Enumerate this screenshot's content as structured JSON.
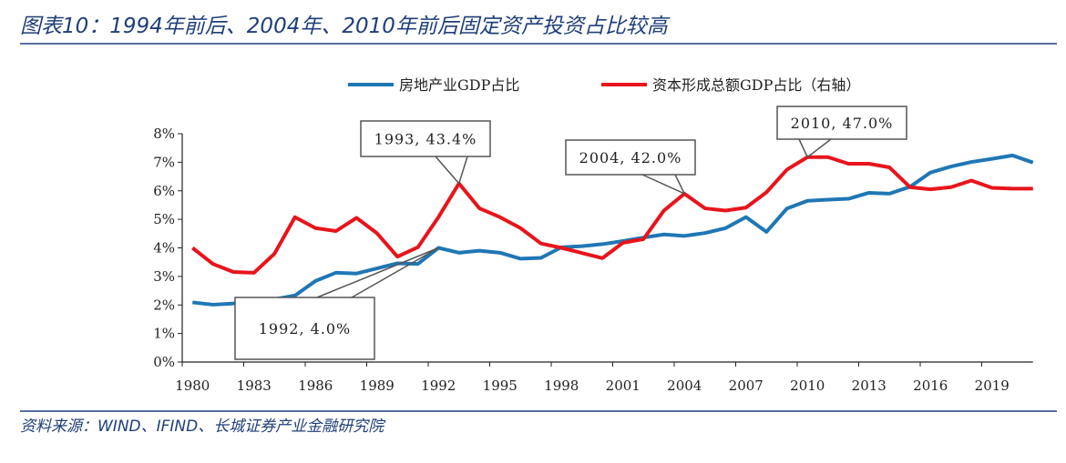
{
  "title": "图表10：1994年前后、2004年、2010年前后固定资产投资占比较高",
  "source": "资料来源：WIND、IFIND、长城证券产业金融研究院",
  "chart_data": {
    "type": "line",
    "x": [
      1980,
      1981,
      1982,
      1983,
      1984,
      1985,
      1986,
      1987,
      1988,
      1989,
      1990,
      1991,
      1992,
      1993,
      1994,
      1995,
      1996,
      1997,
      1998,
      1999,
      2000,
      2001,
      2002,
      2003,
      2004,
      2005,
      2006,
      2007,
      2008,
      2009,
      2010,
      2011,
      2012,
      2013,
      2014,
      2015,
      2016,
      2017,
      2018,
      2019,
      2020,
      2021
    ],
    "x_tick_labels": [
      "1980",
      "1983",
      "1986",
      "1989",
      "1992",
      "1995",
      "1998",
      "2001",
      "2004",
      "2007",
      "2010",
      "2013",
      "2016",
      "2019"
    ],
    "y_tick_labels": [
      "0%",
      "1%",
      "2%",
      "3%",
      "4%",
      "5%",
      "6%",
      "7%",
      "8%"
    ],
    "ylim": [
      0,
      8
    ],
    "y2lim": [
      19,
      50.2
    ],
    "y2_axis_visible": false,
    "grid": false,
    "legend_position": "top",
    "series": [
      {
        "name": "房地产业GDP占比",
        "axis": "left",
        "color": "#1f77b4",
        "values": [
          2.09,
          2.01,
          2.05,
          2.1,
          2.2,
          2.33,
          2.84,
          3.13,
          3.1,
          3.28,
          3.46,
          3.44,
          4.0,
          3.83,
          3.9,
          3.83,
          3.62,
          3.65,
          4.02,
          4.06,
          4.13,
          4.24,
          4.36,
          4.47,
          4.42,
          4.52,
          4.69,
          5.08,
          4.56,
          5.38,
          5.65,
          5.69,
          5.72,
          5.93,
          5.9,
          6.14,
          6.64,
          6.85,
          7.01,
          7.12,
          7.24,
          6.99
        ]
      },
      {
        "name": "资本形成总额GDP占比（右轴）",
        "axis": "right",
        "color": "#e8141b",
        "values": [
          34.6,
          32.4,
          31.3,
          31.2,
          33.8,
          38.8,
          37.3,
          36.9,
          38.7,
          36.6,
          33.4,
          34.7,
          38.8,
          43.4,
          40.0,
          38.8,
          37.3,
          35.2,
          34.6,
          33.9,
          33.2,
          35.3,
          35.8,
          39.7,
          42.0,
          40.0,
          39.7,
          40.1,
          42.2,
          45.3,
          47.0,
          47.0,
          46.1,
          46.1,
          45.6,
          42.9,
          42.6,
          42.9,
          43.8,
          42.8,
          42.7,
          42.7
        ]
      }
    ],
    "annotations": [
      {
        "text": "1993, 43.4%",
        "year": 1993,
        "series": 1
      },
      {
        "text": "1992, 4.0%",
        "year": 1992,
        "series": 0
      },
      {
        "text": "2004, 42.0%",
        "year": 2004,
        "series": 1
      },
      {
        "text": "2010, 47.0%",
        "year": 2010,
        "series": 1
      }
    ]
  }
}
